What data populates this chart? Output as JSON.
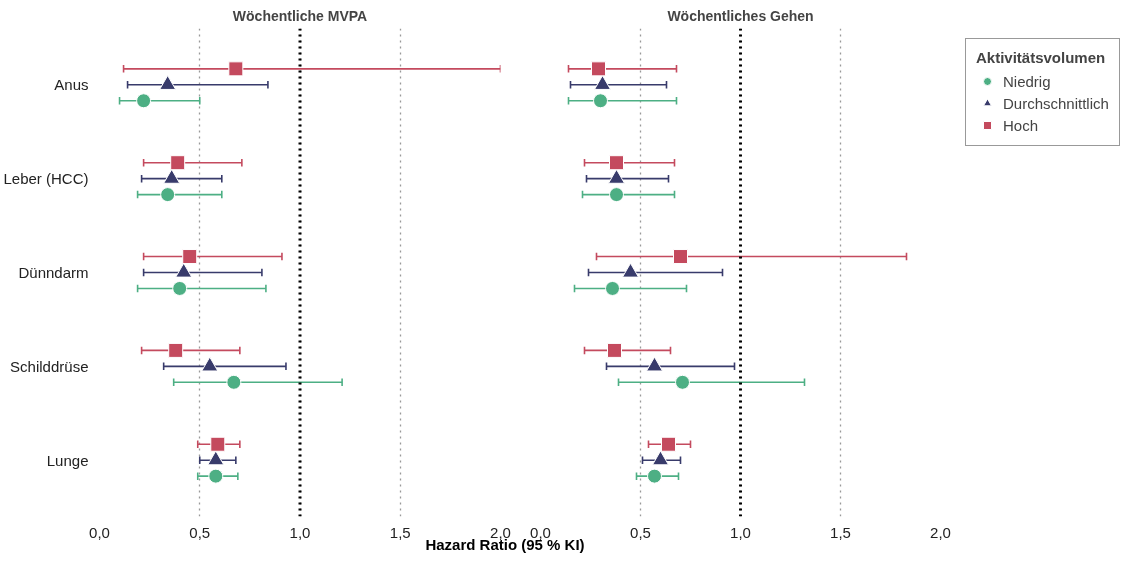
{
  "chart_data": [
    {
      "type": "scatter",
      "orientation": "horizontal",
      "title": "Wöchentliche MVPA",
      "xlabel": "Hazard Ratio (95 % KI)",
      "categories": [
        "Anus",
        "Leber (HCC)",
        "Dünndarm",
        "Schilddrüse",
        "Lunge"
      ],
      "xlim": [
        0,
        2
      ],
      "xticks": [
        {
          "value": 0,
          "label": "0,0"
        },
        {
          "value": 0.5,
          "label": "0,5"
        },
        {
          "value": 1,
          "label": "1,0"
        },
        {
          "value": 1.5,
          "label": "1,5"
        },
        {
          "value": 2,
          "label": "2,0"
        }
      ],
      "grid": "x",
      "ref_lines": [
        {
          "axis": "x",
          "value": 1,
          "color": "#000000",
          "line_style": "dotted"
        }
      ],
      "series": [
        {
          "color": "#4daf84",
          "marker": "circle",
          "values": [
            0.22,
            0.34,
            0.4,
            0.67,
            0.58
          ],
          "errors": [
            [
              0.1,
              0.5
            ],
            [
              0.19,
              0.61
            ],
            [
              0.19,
              0.83
            ],
            [
              0.37,
              1.21
            ],
            [
              0.49,
              0.69
            ]
          ]
        },
        {
          "color": "#383b6b",
          "marker": "triangle",
          "values": [
            0.34,
            0.36,
            0.42,
            0.55,
            0.58
          ],
          "errors": [
            [
              0.14,
              0.84
            ],
            [
              0.21,
              0.61
            ],
            [
              0.22,
              0.81
            ],
            [
              0.32,
              0.93
            ],
            [
              0.5,
              0.68
            ]
          ]
        },
        {
          "color": "#c44a5e",
          "marker": "square",
          "values": [
            0.68,
            0.39,
            0.45,
            0.38,
            0.59
          ],
          "errors": [
            [
              0.12,
              2.0
            ],
            [
              0.22,
              0.71
            ],
            [
              0.22,
              0.91
            ],
            [
              0.21,
              0.7
            ],
            [
              0.49,
              0.7
            ]
          ]
        }
      ]
    },
    {
      "type": "scatter",
      "orientation": "horizontal",
      "title": "Wöchentliches Gehen",
      "categories": [
        null,
        null,
        null,
        null,
        null
      ],
      "tick_labels": "x",
      "xlim": [
        0,
        2
      ],
      "xticks": [
        {
          "value": 0,
          "label": "0,0"
        },
        {
          "value": 0.5,
          "label": "0,5"
        },
        {
          "value": 1,
          "label": "1,0"
        },
        {
          "value": 1.5,
          "label": "1,5"
        },
        {
          "value": 2,
          "label": "2,0"
        }
      ],
      "grid": "x",
      "ref_lines": [
        {
          "axis": "x",
          "value": 1,
          "color": "#000000",
          "line_style": "dotted"
        }
      ],
      "legend": "right",
      "legend_title": "Aktivitätsvolumen",
      "series": [
        {
          "name": "Niedrig",
          "color": "#4daf84",
          "marker": "circle",
          "values": [
            0.3,
            0.38,
            0.36,
            0.71,
            0.57
          ],
          "errors": [
            [
              0.14,
              0.68
            ],
            [
              0.21,
              0.67
            ],
            [
              0.17,
              0.73
            ],
            [
              0.39,
              1.32
            ],
            [
              0.48,
              0.69
            ]
          ]
        },
        {
          "name": "Durchschnittlich",
          "color": "#383b6b",
          "marker": "triangle",
          "values": [
            0.31,
            0.38,
            0.45,
            0.57,
            0.6
          ],
          "errors": [
            [
              0.15,
              0.63
            ],
            [
              0.23,
              0.64
            ],
            [
              0.24,
              0.91
            ],
            [
              0.33,
              0.97
            ],
            [
              0.51,
              0.7
            ]
          ]
        },
        {
          "name": "Hoch",
          "color": "#c44a5e",
          "marker": "square",
          "values": [
            0.29,
            0.38,
            0.7,
            0.37,
            0.64
          ],
          "errors": [
            [
              0.14,
              0.68
            ],
            [
              0.22,
              0.67
            ],
            [
              0.28,
              1.83
            ],
            [
              0.22,
              0.65
            ],
            [
              0.54,
              0.75
            ]
          ]
        }
      ]
    }
  ]
}
